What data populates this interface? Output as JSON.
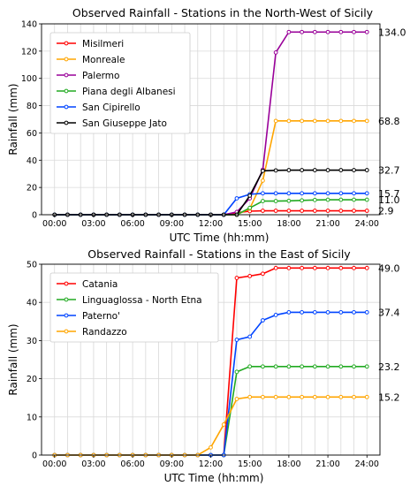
{
  "chart_data": [
    {
      "type": "line",
      "title": "Observed Rainfall - Stations in the North-West of Sicily",
      "xlabel": "UTC Time (hh:mm)",
      "ylabel": "Rainfall (mm)",
      "xticks": [
        "00:00",
        "03:00",
        "06:00",
        "09:00",
        "12:00",
        "15:00",
        "18:00",
        "21:00",
        "24:00"
      ],
      "yticks": [
        0,
        20,
        40,
        60,
        80,
        100,
        120,
        140
      ],
      "ylim": [
        0,
        140
      ],
      "xlim_hours": [
        -1,
        25
      ],
      "grid": true,
      "legend_position": "top-left",
      "x": [
        0,
        1,
        2,
        3,
        4,
        5,
        6,
        7,
        8,
        9,
        10,
        11,
        12,
        13,
        14,
        15,
        16,
        17,
        18,
        19,
        20,
        21,
        22,
        23,
        24
      ],
      "series": [
        {
          "name": "Misilmeri",
          "color": "#ff0000",
          "end_label": "2.9",
          "values": [
            0,
            0,
            0,
            0,
            0,
            0,
            0,
            0,
            0,
            0,
            0,
            0,
            0,
            0,
            1.5,
            2.6,
            2.9,
            2.9,
            2.9,
            2.9,
            2.9,
            2.9,
            2.9,
            2.9,
            2.9
          ]
        },
        {
          "name": "Monreale",
          "color": "#ffa500",
          "end_label": "68.8",
          "values": [
            0,
            0,
            0,
            0,
            0,
            0,
            0,
            0,
            0,
            0,
            0,
            0,
            0,
            0,
            0,
            4.5,
            25,
            68.8,
            68.8,
            68.8,
            68.8,
            68.8,
            68.8,
            68.8,
            68.8
          ]
        },
        {
          "name": "Palermo",
          "color": "#990099",
          "end_label": "134.0",
          "values": [
            0,
            0,
            0,
            0,
            0,
            0,
            0,
            0,
            0,
            0,
            0,
            0,
            0,
            0,
            2,
            12,
            33,
            119,
            134,
            134,
            134,
            134,
            134,
            134,
            134
          ]
        },
        {
          "name": "Piana degli Albanesi",
          "color": "#22aa22",
          "end_label": "11.0",
          "values": [
            0,
            0,
            0,
            0,
            0,
            0,
            0,
            0,
            0,
            0,
            0,
            0,
            0,
            0,
            0,
            5,
            10,
            10,
            10.2,
            10.5,
            10.8,
            11,
            11,
            11,
            11
          ]
        },
        {
          "name": "San Cipirello",
          "color": "#0044ff",
          "end_label": "15.7",
          "values": [
            0,
            0,
            0,
            0,
            0,
            0,
            0,
            0,
            0,
            0,
            0,
            0,
            0,
            0,
            12,
            15,
            15.7,
            15.7,
            15.7,
            15.7,
            15.7,
            15.7,
            15.7,
            15.7,
            15.7
          ]
        },
        {
          "name": "San Giuseppe Jato",
          "color": "#000000",
          "end_label": "32.7",
          "values": [
            0,
            0,
            0,
            0,
            0,
            0,
            0,
            0,
            0,
            0,
            0,
            0,
            0,
            0,
            0,
            14,
            32.2,
            32.5,
            32.7,
            32.7,
            32.7,
            32.7,
            32.7,
            32.7,
            32.7
          ]
        }
      ]
    },
    {
      "type": "line",
      "title": "Observed Rainfall - Stations in the East of Sicily",
      "xlabel": "UTC Time (hh:mm)",
      "ylabel": "Rainfall (mm)",
      "xticks": [
        "00:00",
        "03:00",
        "06:00",
        "09:00",
        "12:00",
        "15:00",
        "18:00",
        "21:00",
        "24:00"
      ],
      "yticks": [
        0,
        10,
        20,
        30,
        40,
        50
      ],
      "ylim": [
        0,
        50
      ],
      "xlim_hours": [
        -1,
        25
      ],
      "grid": true,
      "legend_position": "top-left",
      "x": [
        0,
        1,
        2,
        3,
        4,
        5,
        6,
        7,
        8,
        9,
        10,
        11,
        12,
        13,
        14,
        15,
        16,
        17,
        18,
        19,
        20,
        21,
        22,
        23,
        24
      ],
      "series": [
        {
          "name": "Catania",
          "color": "#ff0000",
          "end_label": "49.0",
          "values": [
            0,
            0,
            0,
            0,
            0,
            0,
            0,
            0,
            0,
            0,
            0,
            0,
            0,
            0,
            46.4,
            46.9,
            47.5,
            49,
            49,
            49,
            49,
            49,
            49,
            49,
            49
          ]
        },
        {
          "name": "Linguaglossa - North Etna",
          "color": "#22aa22",
          "end_label": "23.2",
          "values": [
            0,
            0,
            0,
            0,
            0,
            0,
            0,
            0,
            0,
            0,
            0,
            0,
            0,
            0,
            21.8,
            23.2,
            23.2,
            23.2,
            23.2,
            23.2,
            23.2,
            23.2,
            23.2,
            23.2,
            23.2
          ]
        },
        {
          "name": "Paterno'",
          "color": "#0044ff",
          "end_label": "37.4",
          "values": [
            0,
            0,
            0,
            0,
            0,
            0,
            0,
            0,
            0,
            0,
            0,
            0,
            0,
            0,
            30.2,
            31,
            35.3,
            36.7,
            37.4,
            37.4,
            37.4,
            37.4,
            37.4,
            37.4,
            37.4
          ]
        },
        {
          "name": "Randazzo",
          "color": "#ffa500",
          "end_label": "15.2",
          "values": [
            0,
            0,
            0,
            0,
            0,
            0,
            0,
            0,
            0,
            0,
            0,
            0,
            2,
            8,
            14.7,
            15.2,
            15.2,
            15.2,
            15.2,
            15.2,
            15.2,
            15.2,
            15.2,
            15.2,
            15.2
          ]
        }
      ]
    }
  ]
}
